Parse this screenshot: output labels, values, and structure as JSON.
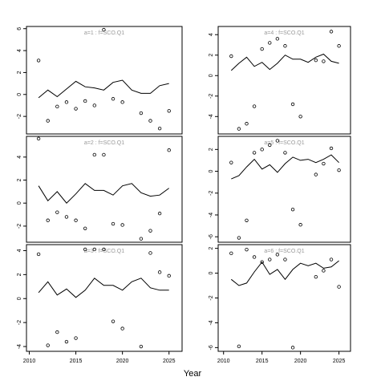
{
  "xlabel": "Year",
  "chart_data": [
    {
      "type": "line",
      "title": "a=1 : f=SCO.Q1",
      "x": [
        2011,
        2012,
        2013,
        2014,
        2015,
        2016,
        2017,
        2018,
        2019,
        2020,
        2021,
        2022,
        2023,
        2024,
        2025
      ],
      "series": [
        {
          "style": "line",
          "values": [
            -0.3,
            0.4,
            -0.2,
            0.5,
            1.2,
            0.7,
            0.6,
            0.4,
            1.1,
            1.3,
            0.4,
            0.1,
            0.1,
            0.8,
            1.0
          ]
        },
        {
          "style": "points",
          "values": [
            3.1,
            -2.4,
            -1.1,
            -0.7,
            -1.3,
            -0.6,
            -1.0,
            5.9,
            -0.4,
            -0.7,
            null,
            -1.7,
            -2.4,
            -3.1,
            -1.5
          ]
        }
      ],
      "xlim": [
        2009.7,
        2026.4
      ],
      "ylim": [
        -3.6,
        6.2
      ],
      "yticks": [
        -2,
        0,
        2,
        4,
        6
      ]
    },
    {
      "type": "line",
      "title": "a=4 : f=SCO.Q1",
      "x": [
        2011,
        2012,
        2013,
        2014,
        2015,
        2016,
        2017,
        2018,
        2019,
        2020,
        2021,
        2022,
        2023,
        2024,
        2025
      ],
      "series": [
        {
          "style": "line",
          "values": [
            0.5,
            1.2,
            1.8,
            0.9,
            1.3,
            0.6,
            1.2,
            2.0,
            1.6,
            1.6,
            1.3,
            1.8,
            2.1,
            1.4,
            1.2
          ]
        },
        {
          "style": "points",
          "values": [
            1.9,
            -5.2,
            -4.7,
            -3.0,
            2.6,
            3.2,
            3.6,
            2.9,
            -2.8,
            -4.0,
            null,
            1.5,
            1.4,
            4.3,
            2.9
          ]
        }
      ],
      "xlim": [
        2009.3,
        2026.5
      ],
      "ylim": [
        -5.7,
        4.8
      ],
      "yticks": [
        -4,
        -2,
        0,
        2,
        4
      ]
    },
    {
      "type": "line",
      "title": "a=2 : f=SCO.Q1",
      "x": [
        2011,
        2012,
        2013,
        2014,
        2015,
        2016,
        2017,
        2018,
        2019,
        2020,
        2021,
        2022,
        2023,
        2024,
        2025
      ],
      "series": [
        {
          "style": "line",
          "values": [
            1.5,
            0.2,
            1.0,
            0.0,
            0.8,
            1.7,
            1.1,
            1.1,
            0.7,
            1.5,
            1.7,
            0.9,
            0.6,
            0.7,
            1.3
          ]
        },
        {
          "style": "points",
          "values": [
            5.6,
            -1.5,
            -0.8,
            -1.2,
            -1.5,
            -2.2,
            4.2,
            4.2,
            -1.8,
            -1.9,
            null,
            -3.1,
            -2.4,
            -0.9,
            4.6
          ]
        }
      ],
      "xlim": [
        2009.7,
        2026.4
      ],
      "ylim": [
        -3.4,
        5.8
      ],
      "yticks": [
        -2,
        0,
        2,
        4
      ]
    },
    {
      "type": "line",
      "title": "a=5 : f=SCO.Q1",
      "x": [
        2011,
        2012,
        2013,
        2014,
        2015,
        2016,
        2017,
        2018,
        2019,
        2020,
        2021,
        2022,
        2023,
        2024,
        2025
      ],
      "series": [
        {
          "style": "line",
          "values": [
            -0.7,
            -0.4,
            0.4,
            1.1,
            0.2,
            0.6,
            -0.1,
            0.7,
            1.3,
            1.0,
            1.1,
            0.8,
            1.1,
            1.5,
            0.8
          ]
        },
        {
          "style": "points",
          "values": [
            0.8,
            -6.1,
            -4.5,
            1.7,
            2.0,
            2.4,
            2.8,
            1.7,
            -3.5,
            -4.9,
            null,
            -0.3,
            0.7,
            2.1,
            0.1
          ]
        }
      ],
      "xlim": [
        2009.3,
        2026.5
      ],
      "ylim": [
        -6.5,
        3.2
      ],
      "yticks": [
        -6,
        -4,
        -2,
        0,
        2
      ]
    },
    {
      "type": "line",
      "title": "a=3 : f=SCO.Q1",
      "x": [
        2011,
        2012,
        2013,
        2014,
        2015,
        2016,
        2017,
        2018,
        2019,
        2020,
        2021,
        2022,
        2023,
        2024,
        2025
      ],
      "series": [
        {
          "style": "line",
          "values": [
            0.5,
            1.4,
            0.3,
            0.8,
            0.1,
            0.7,
            1.7,
            1.1,
            1.1,
            0.7,
            1.4,
            1.7,
            0.9,
            0.7,
            0.7
          ]
        },
        {
          "style": "points",
          "values": [
            3.7,
            -3.9,
            -2.8,
            -3.6,
            -3.3,
            4.1,
            4.1,
            4.1,
            -1.9,
            -2.5,
            null,
            -4.0,
            3.8,
            2.2,
            1.9
          ]
        }
      ],
      "xlim": [
        2009.7,
        2026.4
      ],
      "ylim": [
        -4.4,
        4.5
      ],
      "yticks": [
        -4,
        -2,
        0,
        2,
        4
      ],
      "xticks": [
        2010,
        2015,
        2020,
        2025
      ]
    },
    {
      "type": "line",
      "title": "a=6 : f=SCO.Q1",
      "x": [
        2011,
        2012,
        2013,
        2014,
        2015,
        2016,
        2017,
        2018,
        2019,
        2020,
        2021,
        2022,
        2023,
        2024,
        2025
      ],
      "series": [
        {
          "style": "line",
          "values": [
            -0.5,
            -1.0,
            -0.8,
            0.1,
            0.9,
            -0.1,
            0.3,
            -0.5,
            0.3,
            0.8,
            0.6,
            0.8,
            0.4,
            0.5,
            1.0
          ]
        },
        {
          "style": "points",
          "values": [
            1.6,
            -5.9,
            1.9,
            1.3,
            0.9,
            1.1,
            1.5,
            1.1,
            -6.0,
            null,
            null,
            -0.3,
            0.2,
            1.1,
            -1.1
          ]
        }
      ],
      "xlim": [
        2009.3,
        2026.5
      ],
      "ylim": [
        -6.3,
        2.3
      ],
      "yticks": [
        -6,
        -4,
        -2,
        0,
        2
      ],
      "xticks": [
        2010,
        2015,
        2020,
        2025
      ]
    }
  ]
}
